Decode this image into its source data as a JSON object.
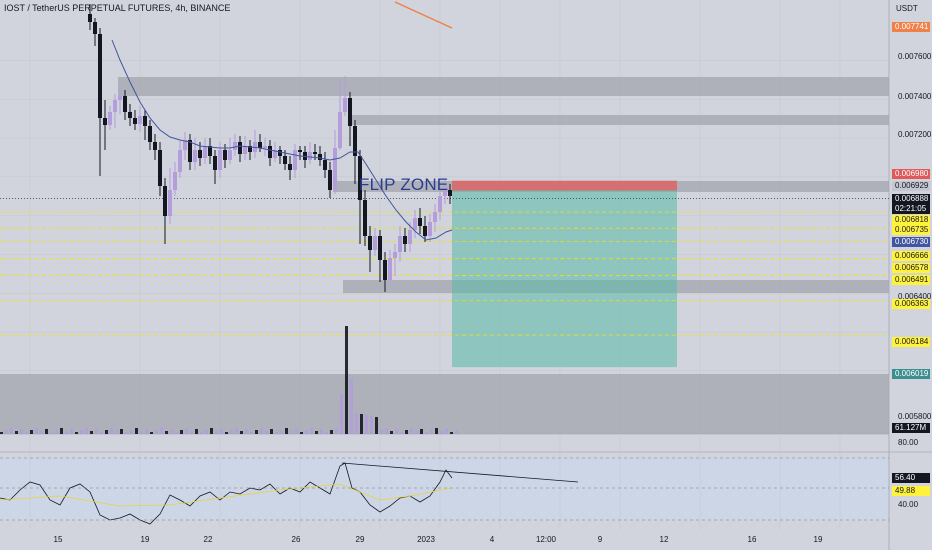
{
  "header": {
    "title": "IOST / TetherUS PERPETUAL FUTURES, 4h, BINANCE",
    "unit": "USDT"
  },
  "annotation": {
    "flip_zone": "FLIP ZONE"
  },
  "price_axis": {
    "ticks": [
      "0.007600",
      "0.007400",
      "0.007200",
      "0.006400",
      "0.005800"
    ],
    "badges": [
      {
        "label": "0.007741",
        "bg": "#f0804a",
        "fg": "#ffffff"
      },
      {
        "label": "0.006980",
        "bg": "#e15a5a",
        "fg": "#ffffff"
      },
      {
        "label": "0.006929",
        "bg": "#c4c7cf",
        "fg": "#131722"
      },
      {
        "label": "0.006888",
        "bg": "#131722",
        "fg": "#ffffff"
      },
      {
        "label": "02:21:05",
        "bg": "#131722",
        "fg": "#ffffff"
      },
      {
        "label": "0.006818",
        "bg": "#fff23a",
        "fg": "#131722"
      },
      {
        "label": "0.006735",
        "bg": "#fff23a",
        "fg": "#131722"
      },
      {
        "label": "0.006730",
        "bg": "#4255a0",
        "fg": "#ffffff"
      },
      {
        "label": "0.006666",
        "bg": "#fff23a",
        "fg": "#131722"
      },
      {
        "label": "0.006578",
        "bg": "#fff23a",
        "fg": "#131722"
      },
      {
        "label": "0.006491",
        "bg": "#fff23a",
        "fg": "#131722"
      },
      {
        "label": "0.006363",
        "bg": "#fff23a",
        "fg": "#131722"
      },
      {
        "label": "0.006184",
        "bg": "#fff23a",
        "fg": "#131722"
      },
      {
        "label": "0.006019",
        "bg": "#3c8f8f",
        "fg": "#ffffff"
      },
      {
        "label": "61.127M",
        "bg": "#131722",
        "fg": "#ffffff"
      }
    ]
  },
  "rsi_axis": {
    "ticks": [
      "80.00",
      "40.00"
    ],
    "badges": [
      {
        "label": "56.40",
        "bg": "#131722",
        "fg": "#ffffff"
      },
      {
        "label": "49.88",
        "bg": "#fff23a",
        "fg": "#131722"
      }
    ]
  },
  "time_axis": [
    "15",
    "19",
    "22",
    "26",
    "29",
    "2023",
    "4",
    "12:00",
    "9",
    "12",
    "16",
    "19"
  ],
  "chart_data": {
    "type": "candlestick",
    "title": "IOST / TetherUS PERPETUAL FUTURES, 4h, BINANCE",
    "yunit": "USDT",
    "last_price": 0.006888,
    "countdown": "02:21:05",
    "moving_average_last": 0.00673,
    "level_lines": [
      0.006818,
      0.006735,
      0.006666,
      0.006578,
      0.006491,
      0.006363,
      0.006184
    ],
    "short_position": {
      "stop": 0.00698,
      "entry": 0.006929,
      "target": 0.006019
    },
    "upper_line_label": 0.007741,
    "volume_last": "61.127M",
    "rsi": {
      "value": 56.4,
      "signal": 49.88,
      "upper": 80,
      "lower": 40
    },
    "colors": {
      "up": "#b39ddb",
      "down": "#131722",
      "ma": "#4255a0",
      "rsi": "#131722",
      "rsi_ma": "#e6d43a",
      "stop": "#e15a5a",
      "target": "#5ab8a8"
    }
  }
}
